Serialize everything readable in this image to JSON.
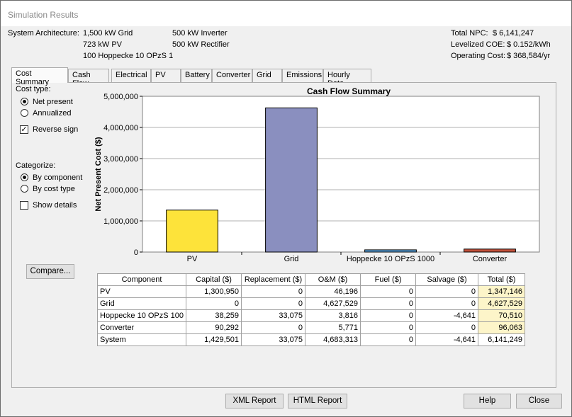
{
  "window": {
    "title": "Simulation Results"
  },
  "architecture": {
    "label": "System Architecture:",
    "col1": [
      "1,500 kW Grid",
      "723 kW PV",
      "100 Hoppecke 10 OPzS 1"
    ],
    "col2": [
      "500 kW Inverter",
      "500 kW Rectifier"
    ]
  },
  "summary": {
    "npc_label": "Total NPC:",
    "npc_value": "$ 6,141,247",
    "coe_label": "Levelized COE:",
    "coe_value": "$ 0.152/kWh",
    "opcost_label": "Operating Cost:",
    "opcost_value": "$ 368,584/yr"
  },
  "tabs": [
    "Cost Summary",
    "Cash Flow",
    "Electrical",
    "PV",
    "Battery",
    "Converter",
    "Grid",
    "Emissions",
    "Hourly Data"
  ],
  "controls": {
    "cost_type_label": "Cost type:",
    "net_present": "Net present",
    "annualized": "Annualized",
    "reverse_sign": "Reverse sign",
    "categorize_label": "Categorize:",
    "by_component": "By component",
    "by_cost_type": "By cost type",
    "show_details": "Show details",
    "compare": "Compare..."
  },
  "chart_data": {
    "type": "bar",
    "title": "Cash Flow Summary",
    "ylabel": "Net Present Cost ($)",
    "xlabel": "",
    "categories": [
      "PV",
      "Grid",
      "Hoppecke 10 OPzS 1000",
      "Converter"
    ],
    "values": [
      1347146,
      4627529,
      70510,
      96063
    ],
    "colors": [
      "#fde33a",
      "#8a8fbf",
      "#5aa0d8",
      "#c0503a"
    ],
    "ylim": [
      0,
      5000000
    ],
    "yticks": [
      "0",
      "1,000,000",
      "2,000,000",
      "3,000,000",
      "4,000,000",
      "5,000,000"
    ],
    "grid": true
  },
  "table": {
    "headers": [
      "Component",
      "Capital ($)",
      "Replacement ($)",
      "O&M ($)",
      "Fuel ($)",
      "Salvage ($)",
      "Total ($)"
    ],
    "rows": [
      [
        "PV",
        "1,300,950",
        "0",
        "46,196",
        "0",
        "0",
        "1,347,146"
      ],
      [
        "Grid",
        "0",
        "0",
        "4,627,529",
        "0",
        "0",
        "4,627,529"
      ],
      [
        "Hoppecke 10 OPzS 100",
        "38,259",
        "33,075",
        "3,816",
        "0",
        "-4,641",
        "70,510"
      ],
      [
        "Converter",
        "90,292",
        "0",
        "5,771",
        "0",
        "0",
        "96,063"
      ],
      [
        "System",
        "1,429,501",
        "33,075",
        "4,683,313",
        "0",
        "-4,641",
        "6,141,249"
      ]
    ]
  },
  "footer": {
    "xml": "XML Report",
    "html": "HTML Report",
    "help": "Help",
    "close": "Close"
  }
}
